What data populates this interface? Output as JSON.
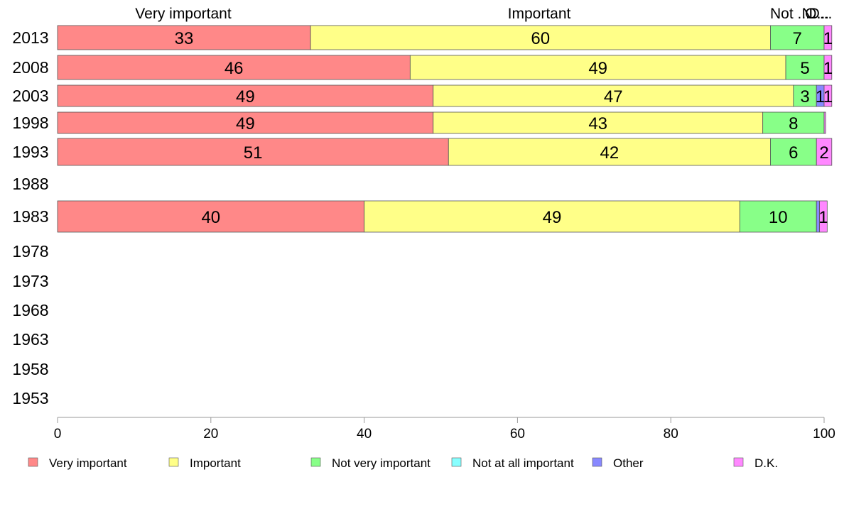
{
  "chart_data": {
    "type": "bar",
    "orientation": "horizontal",
    "stacked": true,
    "title": "",
    "xlabel": "",
    "ylabel": "",
    "xlim": [
      0,
      100
    ],
    "x_ticks": [
      "0",
      "20",
      "40",
      "60",
      "80",
      "100"
    ],
    "categories": [
      "2013",
      "2008",
      "2003",
      "1998",
      "1993",
      "1988",
      "1983",
      "1978",
      "1973",
      "1968",
      "1963",
      "1958",
      "1953"
    ],
    "top_labels": [
      "Very important",
      "Important",
      "Not ...",
      "N...",
      "O...",
      "D..."
    ],
    "series": [
      {
        "name": "Very important",
        "color": "#ff8888",
        "values": [
          33,
          46,
          49,
          49,
          51,
          null,
          40,
          null,
          null,
          null,
          null,
          null,
          null
        ],
        "labels": [
          "33",
          "46",
          "49",
          "49",
          "51",
          "",
          "40",
          "",
          "",
          "",
          "",
          "",
          ""
        ]
      },
      {
        "name": "Important",
        "color": "#ffff88",
        "values": [
          60,
          49,
          47,
          43,
          42,
          null,
          49,
          null,
          null,
          null,
          null,
          null,
          null
        ],
        "labels": [
          "60",
          "49",
          "47",
          "43",
          "42",
          "",
          "49",
          "",
          "",
          "",
          "",
          "",
          ""
        ]
      },
      {
        "name": "Not very important",
        "color": "#88ff88",
        "values": [
          7,
          5,
          3,
          8,
          6,
          null,
          10,
          null,
          null,
          null,
          null,
          null,
          null
        ],
        "labels": [
          "7",
          "5",
          "3",
          "8",
          "6",
          "",
          "10",
          "",
          "",
          "",
          "",
          "",
          ""
        ]
      },
      {
        "name": "Not at all important",
        "color": "#88ffff",
        "values": [
          0,
          0,
          0,
          0,
          0,
          null,
          0,
          null,
          null,
          null,
          null,
          null,
          null
        ],
        "labels": [
          "",
          "",
          "",
          "",
          "",
          "",
          "",
          "",
          "",
          "",
          "",
          "",
          ""
        ]
      },
      {
        "name": "Other",
        "color": "#8888ff",
        "values": [
          0,
          0,
          1,
          0,
          0,
          null,
          0.4,
          null,
          null,
          null,
          null,
          null,
          null
        ],
        "labels": [
          "",
          "",
          "1",
          "",
          "",
          "",
          "",
          "",
          "",
          "",
          "",
          "",
          ""
        ]
      },
      {
        "name": "D.K.",
        "color": "#ff88ff",
        "values": [
          1,
          1,
          1,
          0.2,
          2,
          null,
          1,
          null,
          null,
          null,
          null,
          null,
          null
        ],
        "labels": [
          "1",
          "1",
          "1",
          "",
          "2",
          "",
          "1",
          "",
          "",
          "",
          "",
          "",
          ""
        ]
      }
    ],
    "legend": {
      "position": "bottom"
    },
    "grid": false
  }
}
